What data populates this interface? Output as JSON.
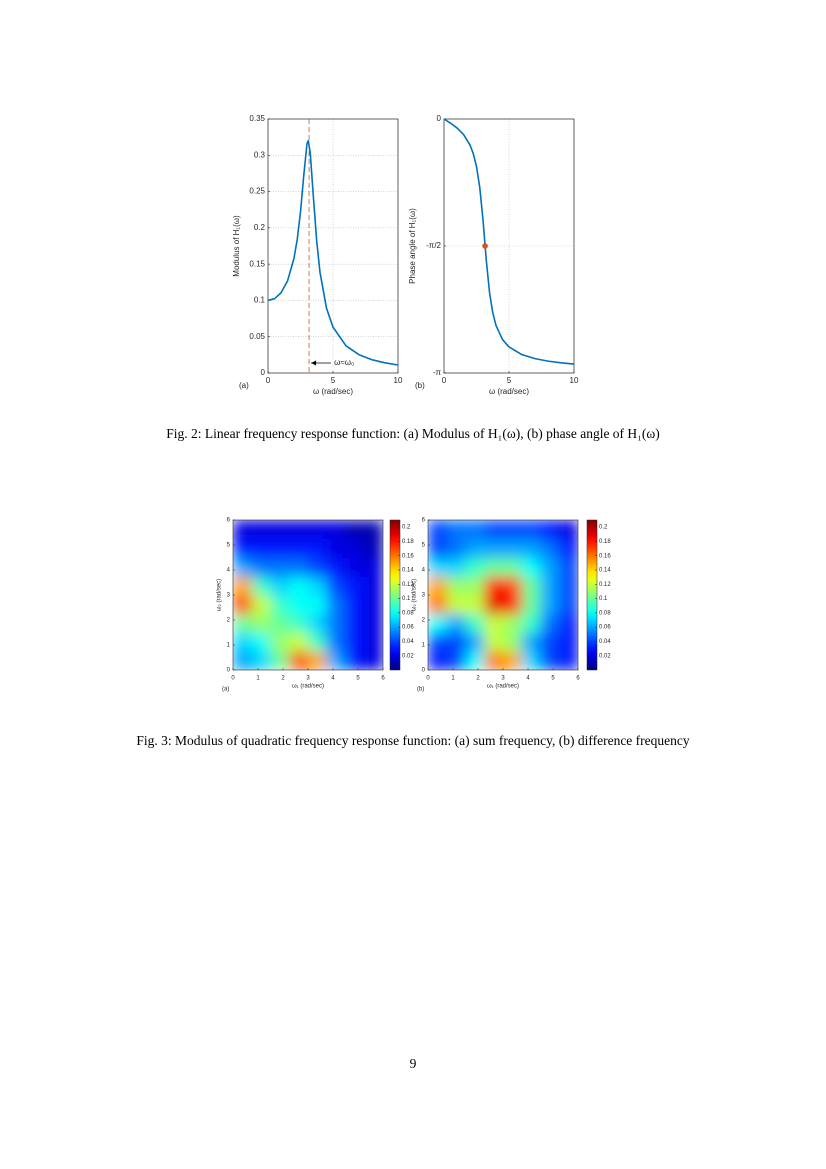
{
  "chart_data": [
    {
      "type": "line",
      "panel": "(a)",
      "x": [
        0,
        0.5,
        1,
        1.5,
        2,
        2.25,
        2.5,
        2.75,
        3,
        3.1,
        3.25,
        3.5,
        3.75,
        4,
        4.5,
        5,
        6,
        7,
        8,
        9,
        10
      ],
      "values": [
        0.1,
        0.1024,
        0.1104,
        0.1267,
        0.1581,
        0.1843,
        0.2219,
        0.2721,
        0.3162,
        0.3201,
        0.3032,
        0.2403,
        0.1809,
        0.1387,
        0.0893,
        0.0632,
        0.0375,
        0.0252,
        0.0183,
        0.014,
        0.011
      ],
      "color": "#0072bd",
      "xlim": [
        0,
        10
      ],
      "ylim": [
        0,
        0.35
      ],
      "xticks": [
        0,
        5,
        10
      ],
      "yticks": [
        0,
        0.05,
        0.1,
        0.15,
        0.2,
        0.25,
        0.3,
        0.35
      ],
      "grid": true,
      "xlabel": "ω (rad/sec)",
      "ylabel": "Modulus of H₁(ω)",
      "reference_x": 3.16,
      "reference_color": "#d95319",
      "annotation": "ω≈ω₀"
    },
    {
      "type": "line",
      "panel": "(b)",
      "x": [
        0,
        0.5,
        1,
        1.5,
        2,
        2.25,
        2.5,
        2.75,
        3,
        3.1,
        3.25,
        3.5,
        3.75,
        4,
        4.5,
        5,
        6,
        7,
        8,
        9,
        10
      ],
      "values": [
        0,
        -0.0512,
        -0.1107,
        -0.1912,
        -0.3218,
        -0.4275,
        -0.588,
        -0.8455,
        -1.249,
        -1.4456,
        -1.7421,
        -2.1422,
        -2.3961,
        -2.5536,
        -2.7284,
        -2.8198,
        -2.9148,
        -2.964,
        -2.9946,
        -3.0155,
        -3.0309
      ],
      "color": "#0072bd",
      "xlim": [
        0,
        10
      ],
      "ylim": [
        -3.1416,
        0
      ],
      "xticks": [
        0,
        5,
        10
      ],
      "yticks": [
        0,
        {
          "value": -1.5708,
          "label": "-π/2"
        },
        {
          "value": -3.1416,
          "label": "-π"
        }
      ],
      "grid": true,
      "xlabel": "ω (rad/sec)",
      "ylabel": "Phase angle of H₁(ω)",
      "marker": {
        "x": 3.16,
        "y": -1.5708,
        "color": "#d95319"
      }
    },
    {
      "type": "heatmap",
      "panel": "(a)",
      "colormap": "jet",
      "x": [
        0.375,
        1.125,
        1.875,
        2.625,
        3.375,
        4.125,
        4.875,
        5.625
      ],
      "y": [
        0.375,
        1.125,
        1.875,
        2.625,
        3.375,
        4.125,
        4.875,
        5.625
      ],
      "z": [
        [
          0.06,
          0.07,
          0.1,
          0.17,
          0.15,
          0.06,
          0.03,
          0.02
        ],
        [
          0.07,
          0.08,
          0.11,
          0.12,
          0.09,
          0.05,
          0.03,
          0.02
        ],
        [
          0.1,
          0.11,
          0.1,
          0.09,
          0.07,
          0.05,
          0.03,
          0.02
        ],
        [
          0.17,
          0.12,
          0.09,
          0.08,
          0.08,
          0.05,
          0.03,
          0.02
        ],
        [
          0.15,
          0.09,
          0.07,
          0.08,
          0.07,
          0.04,
          0.03,
          0.02
        ],
        [
          0.06,
          0.05,
          0.05,
          0.05,
          0.04,
          0.03,
          0.02,
          0.02
        ],
        [
          0.03,
          0.03,
          0.03,
          0.03,
          0.03,
          0.02,
          0.02,
          0.01
        ],
        [
          0.02,
          0.02,
          0.02,
          0.02,
          0.02,
          0.02,
          0.01,
          0.01
        ]
      ],
      "xlim": [
        0,
        6
      ],
      "ylim": [
        0,
        6
      ],
      "xticks": [
        0,
        1,
        2,
        3,
        4,
        5,
        6
      ],
      "yticks": [
        0,
        1,
        2,
        3,
        4,
        5,
        6
      ],
      "clim": [
        0,
        0.21
      ],
      "cticks": [
        0.02,
        0.04,
        0.06,
        0.08,
        0.1,
        0.12,
        0.14,
        0.16,
        0.18,
        0.2
      ],
      "xlabel": "ω₁ (rad/sec)",
      "ylabel": "ω₂ (rad/sec)"
    },
    {
      "type": "heatmap",
      "panel": "(b)",
      "colormap": "jet",
      "x": [
        0.375,
        1.125,
        1.875,
        2.625,
        3.375,
        4.125,
        4.875,
        5.625
      ],
      "y": [
        0.375,
        1.125,
        1.875,
        2.625,
        3.375,
        4.125,
        4.875,
        5.625
      ],
      "z": [
        [
          0.03,
          0.04,
          0.08,
          0.16,
          0.15,
          0.07,
          0.04,
          0.03
        ],
        [
          0.04,
          0.04,
          0.06,
          0.12,
          0.11,
          0.06,
          0.04,
          0.03
        ],
        [
          0.08,
          0.06,
          0.09,
          0.12,
          0.11,
          0.09,
          0.05,
          0.03
        ],
        [
          0.16,
          0.12,
          0.12,
          0.19,
          0.18,
          0.1,
          0.06,
          0.04
        ],
        [
          0.15,
          0.11,
          0.11,
          0.18,
          0.17,
          0.1,
          0.06,
          0.04
        ],
        [
          0.07,
          0.07,
          0.09,
          0.1,
          0.1,
          0.08,
          0.06,
          0.04
        ],
        [
          0.04,
          0.05,
          0.06,
          0.06,
          0.06,
          0.06,
          0.05,
          0.03
        ],
        [
          0.04,
          0.05,
          0.05,
          0.04,
          0.04,
          0.04,
          0.03,
          0.02
        ]
      ],
      "xlim": [
        0,
        6
      ],
      "ylim": [
        0,
        6
      ],
      "xticks": [
        0,
        1,
        2,
        3,
        4,
        5,
        6
      ],
      "yticks": [
        0,
        1,
        2,
        3,
        4,
        5,
        6
      ],
      "clim": [
        0,
        0.21
      ],
      "cticks": [
        0.02,
        0.04,
        0.06,
        0.08,
        0.1,
        0.12,
        0.14,
        0.16,
        0.18,
        0.2
      ],
      "xlabel": "ω₁ (rad/sec)",
      "ylabel": "ω₂ (rad/sec)"
    }
  ],
  "captions": [
    "Fig. 2: Linear frequency response function: (a) Modulus of H₁(ω), (b) phase angle of H₁(ω)",
    "Fig. 3: Modulus of quadratic frequency response function: (a) sum frequency, (b) difference frequency"
  ],
  "page_number": "9"
}
